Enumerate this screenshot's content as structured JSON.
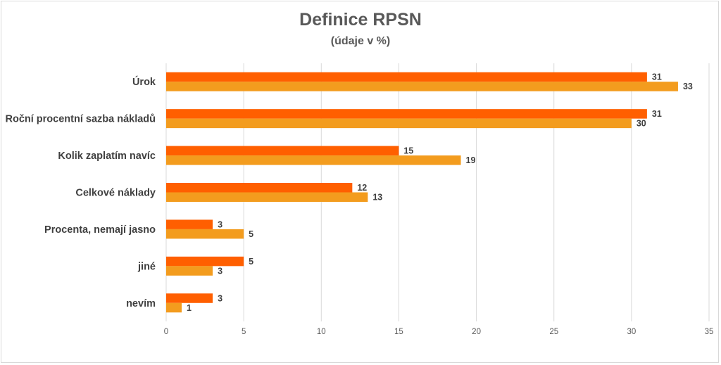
{
  "chart_data": {
    "type": "bar",
    "orientation": "horizontal",
    "title": "Definice RPSN",
    "subtitle": "(údaje v %)",
    "categories": [
      "Úrok",
      "Roční procentní sazba nákladů",
      "Kolik zaplatím navíc",
      "Celkové náklady",
      "Procenta, nemají jasno",
      "jiné",
      "nevím"
    ],
    "series": [
      {
        "color": "#ff5f00",
        "values": [
          31,
          31,
          15,
          12,
          3,
          5,
          3
        ]
      },
      {
        "color": "#f39c1e",
        "values": [
          33,
          30,
          19,
          13,
          5,
          3,
          1
        ]
      }
    ],
    "xlim": [
      0,
      35
    ],
    "xticks": [
      0,
      5,
      10,
      15,
      20,
      25,
      30,
      35
    ],
    "grid": "vertical",
    "legend": "none",
    "data_labels": true
  }
}
